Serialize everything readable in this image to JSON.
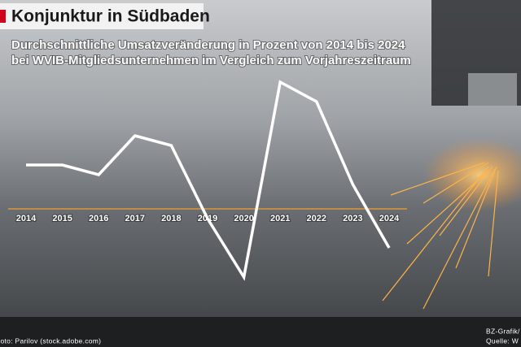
{
  "header": {
    "title": "Konjunktur in Südbaden",
    "subtitle": [
      "Durchschnittliche Umsatzveränderung in Prozent von 2014 bis 2024",
      "bei WVIB-Mitgliedsunternehmen im Vergleich zum Vorjahreszeitraum"
    ]
  },
  "chart_data": {
    "type": "line",
    "categories": [
      "2014",
      "2015",
      "2016",
      "2017",
      "2018",
      "2019",
      "2020",
      "2021",
      "2022",
      "2023",
      "2024"
    ],
    "values": [
      4.5,
      4.5,
      3.5,
      7.5,
      6.5,
      -1,
      -7,
      13,
      11,
      2.5,
      -4
    ],
    "color": "#ffffff",
    "ylim": [
      -10,
      15
    ]
  },
  "footer": {
    "photo_credit": "Foto: Parilov (stock.adobe.com)",
    "graphic": "BZ-Grafik/",
    "source": "Quelle: W"
  }
}
